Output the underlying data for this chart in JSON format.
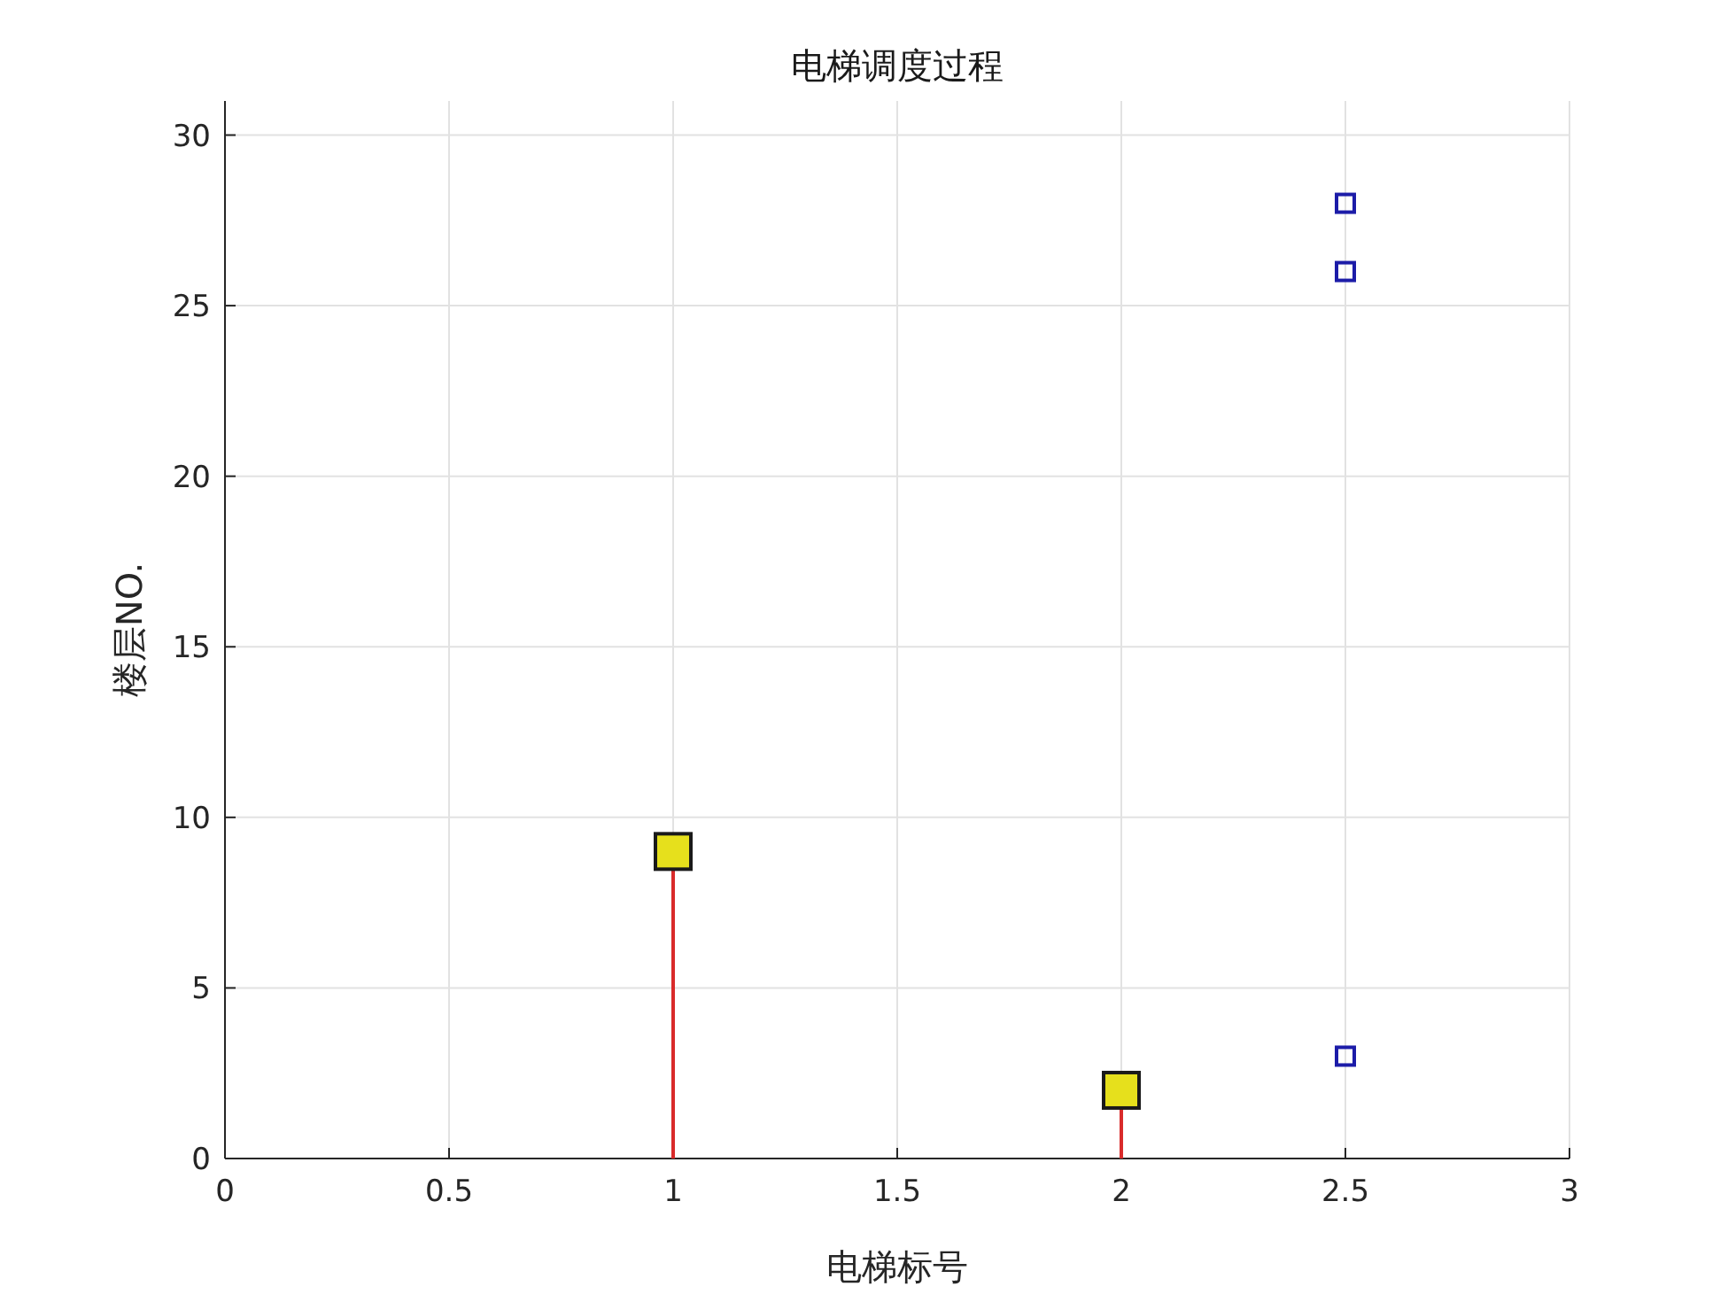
{
  "chart_data": {
    "type": "scatter",
    "title": "电梯调度过程",
    "xlabel": "电梯标号",
    "ylabel": "楼层NO.",
    "xlim": [
      0,
      3
    ],
    "ylim": [
      0,
      31
    ],
    "xticks": [
      0,
      0.5,
      1,
      1.5,
      2,
      2.5,
      3
    ],
    "yticks": [
      0,
      5,
      10,
      15,
      20,
      25,
      30
    ],
    "grid": true,
    "series": [
      {
        "type": "lollipop",
        "x": [
          1,
          2
        ],
        "values": [
          9,
          2
        ],
        "color": "#d92b2b",
        "colors": [
          "#e6e01c",
          "#e6e01c"
        ],
        "marker": "square"
      },
      {
        "x": [
          2.5,
          2.5,
          2.5
        ],
        "values": [
          28,
          26,
          3
        ],
        "color": "#1c1ca8",
        "marker": "square"
      }
    ]
  }
}
